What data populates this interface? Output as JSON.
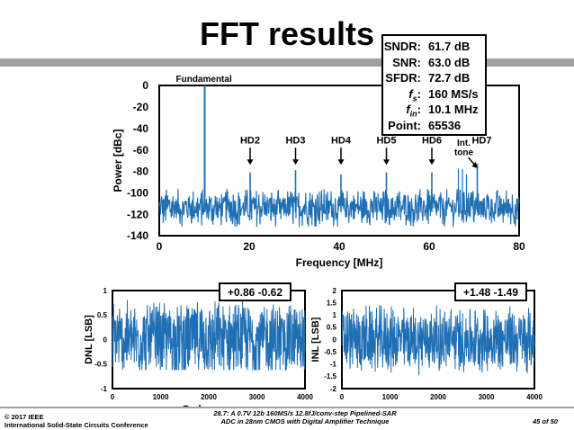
{
  "slide": {
    "title": "FFT results",
    "footer_left_1": "© 2017 IEEE",
    "footer_left_2": "International Solid-State Circuits Conference",
    "footer_center_1": "28.7: A 0.7V 12b 160MS/s 12.8fJ/conv-step Pipelined-SAR",
    "footer_center_2": "ADC in 28nm CMOS with Digital Amplifier Technique",
    "footer_right": "45 of 50"
  },
  "summary": [
    {
      "label": "SNDR:",
      "value": "61.7 dB"
    },
    {
      "label": "SNR:",
      "value": "63.0 dB"
    },
    {
      "label": "SFDR:",
      "value": "72.7 dB"
    },
    {
      "label": "f",
      "sub": "s",
      "suffix": ":",
      "value": "160 MS/s"
    },
    {
      "label": "f",
      "sub": "in",
      "suffix": ":",
      "value": "10.1 MHz"
    },
    {
      "label": "Point:",
      "value": "65536"
    }
  ],
  "chart_data": [
    {
      "type": "line",
      "title": "",
      "xlabel": "Frequency [MHz]",
      "ylabel": "Power [dBc]",
      "xlim": [
        0,
        80
      ],
      "ylim": [
        -140,
        0
      ],
      "xticks": [
        0,
        20,
        40,
        60,
        80
      ],
      "yticks": [
        0,
        -20,
        -40,
        -60,
        -80,
        -100,
        -120,
        -140
      ],
      "color": "#1f6fb4",
      "noise_floor": {
        "x_range": [
          0,
          80
        ],
        "y_range": [
          -132,
          -96
        ]
      },
      "spurs": [
        {
          "x": 10.1,
          "y": 0,
          "label": "Fundamental"
        },
        {
          "x": 20.2,
          "y": -81,
          "label": "HD2"
        },
        {
          "x": 30.3,
          "y": -79,
          "label": "HD3"
        },
        {
          "x": 40.4,
          "y": -83,
          "label": "HD4"
        },
        {
          "x": 50.5,
          "y": -81,
          "label": "HD5"
        },
        {
          "x": 60.6,
          "y": -81,
          "label": "HD6"
        },
        {
          "x": 70.7,
          "y": -73,
          "label": "HD7"
        }
      ],
      "annotations": [
        {
          "text": "Int.",
          "text2": "tone",
          "x": 69.3,
          "y": -74
        }
      ],
      "grid": false
    },
    {
      "type": "line",
      "title": "",
      "xlabel": "Codes",
      "ylabel": "DNL [LSB]",
      "xlim": [
        0,
        4000
      ],
      "ylim": [
        -1,
        1
      ],
      "xticks": [
        0,
        1000,
        2000,
        3000,
        4000
      ],
      "yticks": [
        1,
        0.5,
        0,
        -0.5,
        -1
      ],
      "ytick_labels": [
        "1",
        "0.5",
        "0",
        "-0.5",
        "-1"
      ],
      "max": 0.86,
      "min": -0.62,
      "badge": "+0.86 -0.62",
      "color": "#1f6fb4",
      "grid": false
    },
    {
      "type": "line",
      "title": "",
      "xlabel": "Codes",
      "ylabel": "INL [LSB]",
      "xlim": [
        0,
        4000
      ],
      "ylim": [
        -2,
        2
      ],
      "xticks": [
        0,
        1000,
        2000,
        3000,
        4000
      ],
      "yticks": [
        2,
        1.5,
        1,
        0.5,
        0,
        -0.5,
        -1,
        -1.5,
        -2
      ],
      "ytick_labels": [
        "2",
        "1.5",
        "1",
        "0.5",
        "0",
        "-0.5",
        "-1",
        "-1.5",
        "-2"
      ],
      "max": 1.48,
      "min": -1.49,
      "badge": "+1.48 -1.49",
      "color": "#1f6fb4",
      "grid": false
    }
  ]
}
